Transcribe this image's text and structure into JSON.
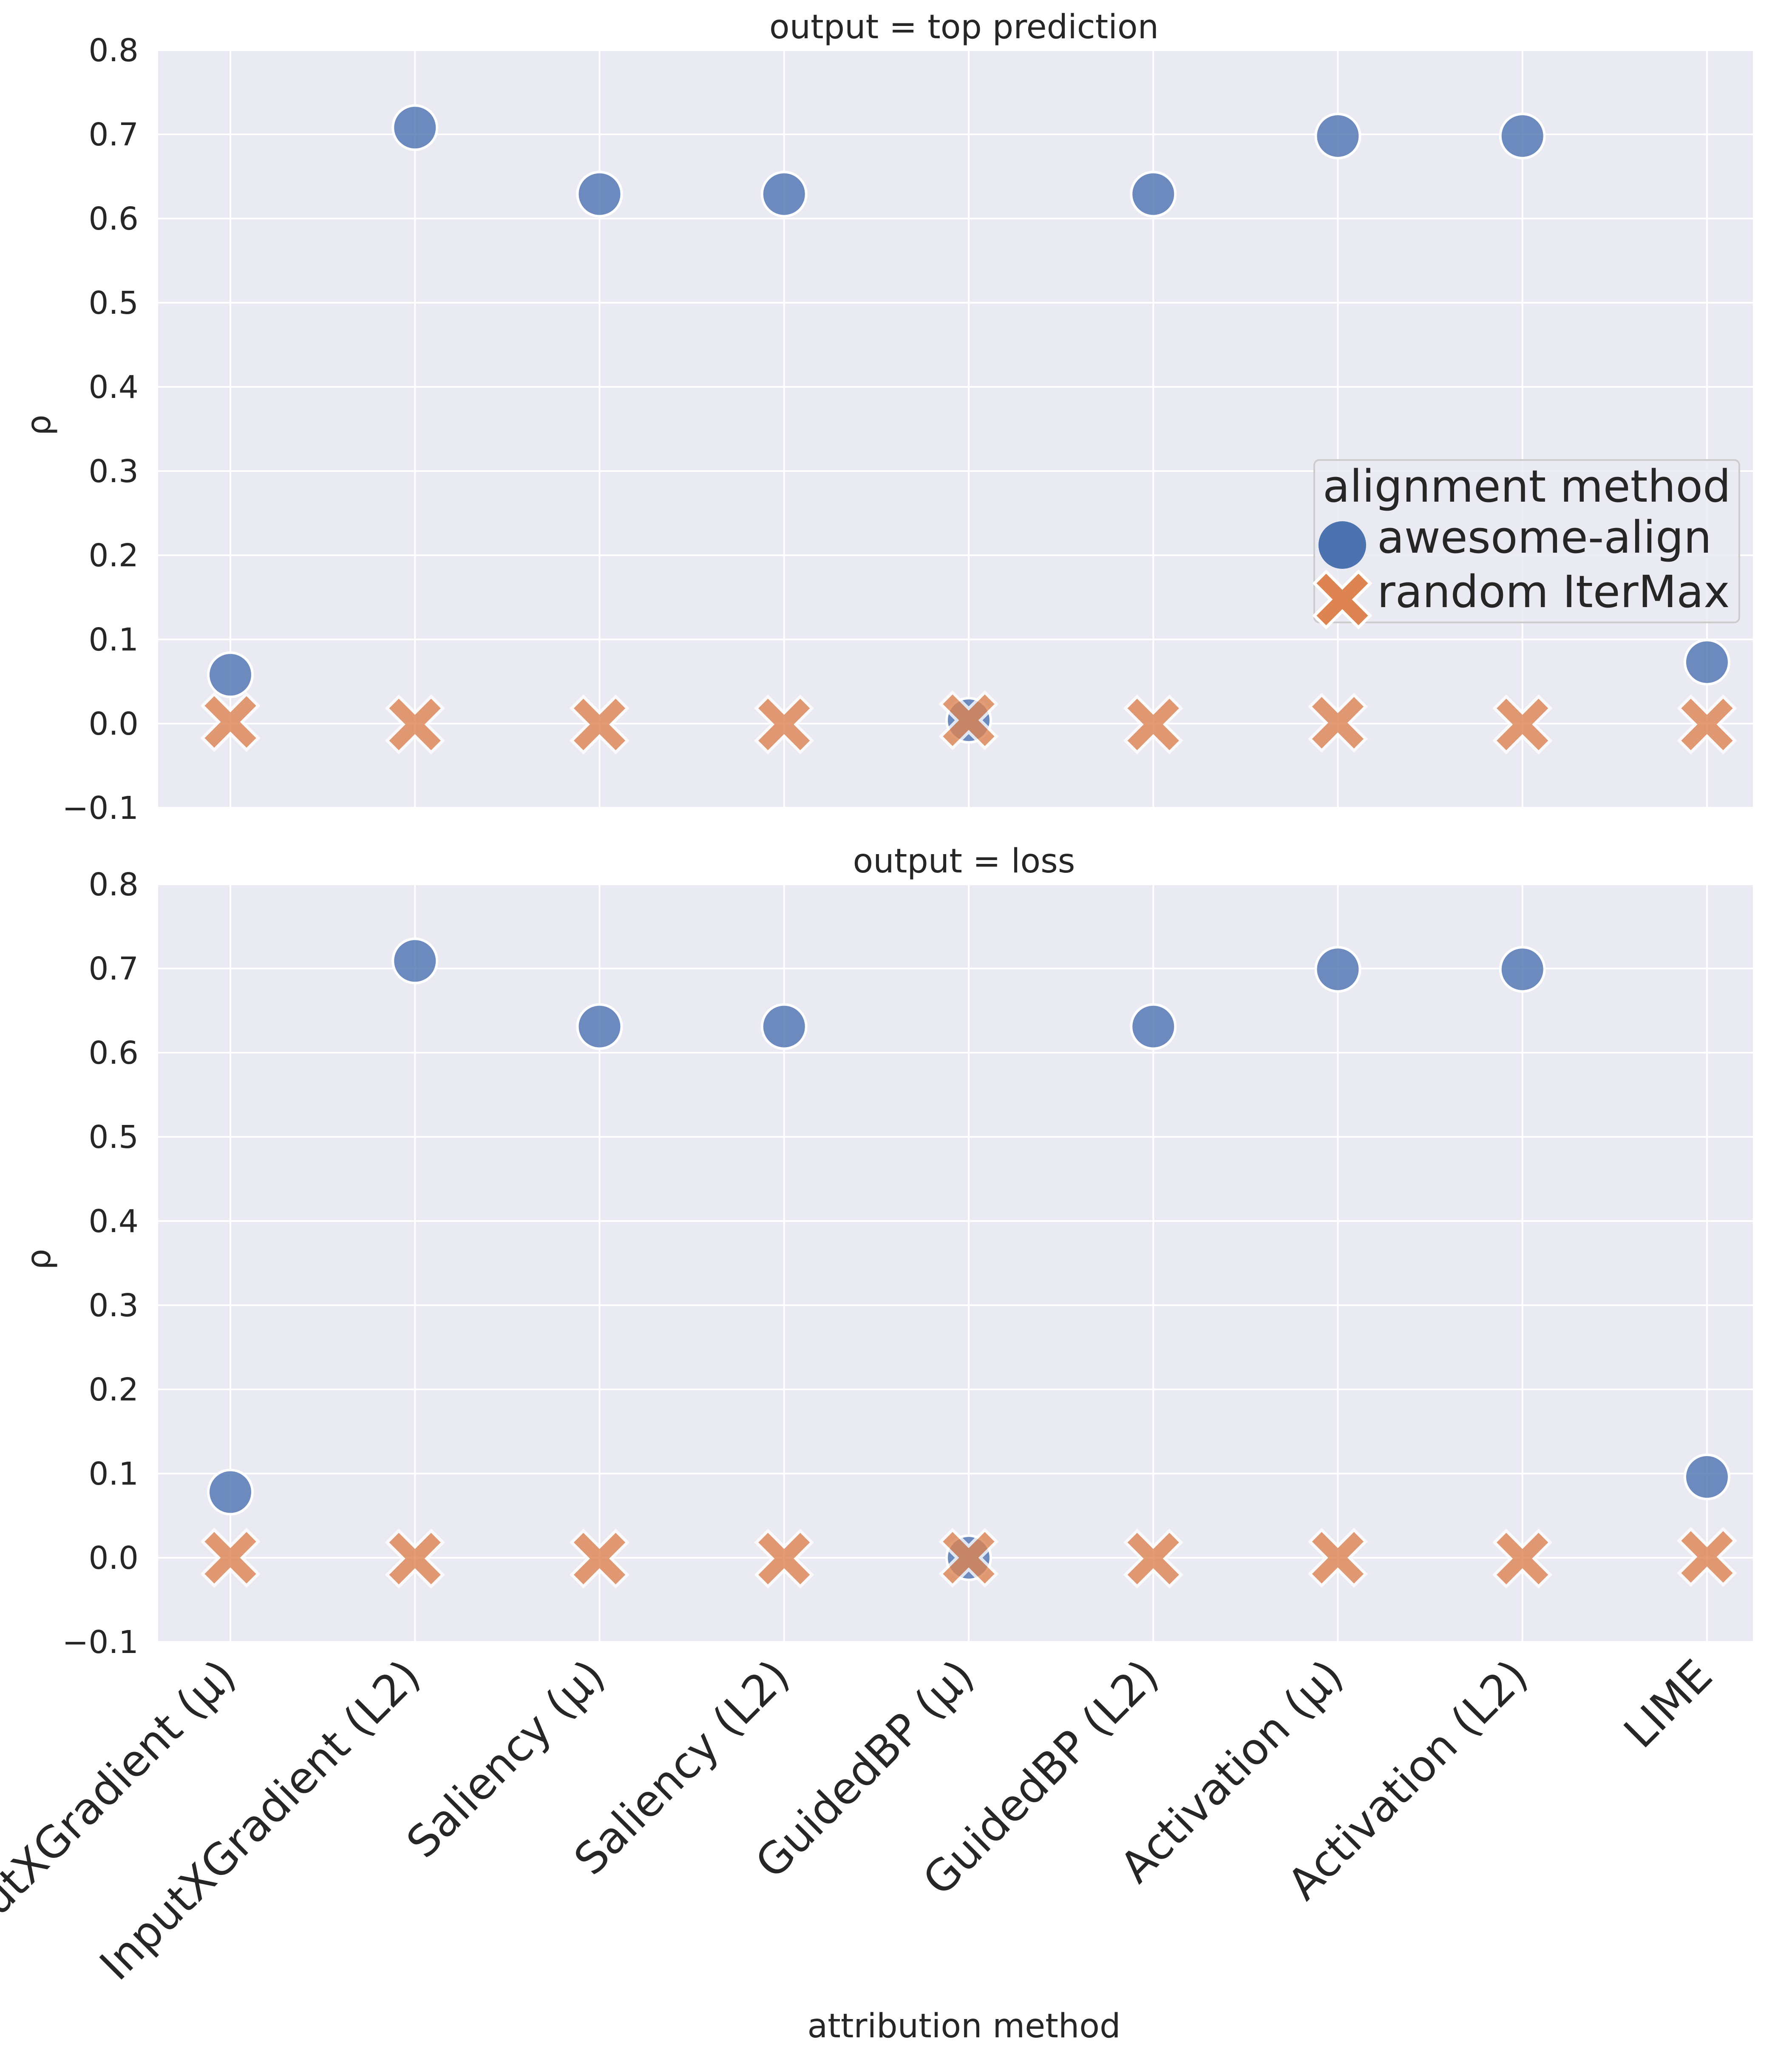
{
  "chart_data": {
    "type": "scatter",
    "xlabel": "attribution method",
    "ylabel": "ρ",
    "ylim": [
      -0.1,
      0.8
    ],
    "y_ticks": [
      -0.1,
      0.0,
      0.1,
      0.2,
      0.3,
      0.4,
      0.5,
      0.6,
      0.7,
      0.8
    ],
    "y_tick_labels": [
      "−0.1",
      "0.0",
      "0.1",
      "0.2",
      "0.3",
      "0.4",
      "0.5",
      "0.6",
      "0.7",
      "0.8"
    ],
    "categories": [
      "InputXGradient (μ)",
      "InputXGradient (L2)",
      "Saliency (μ)",
      "Saliency (L2)",
      "GuidedBP (μ)",
      "GuidedBP (L2)",
      "Activation (μ)",
      "Activation (L2)",
      "LIME"
    ],
    "grid": true,
    "legend": {
      "title": "alignment method",
      "placement": "right, upper panel"
    },
    "panels": [
      {
        "title": "output = top prediction",
        "series": [
          {
            "name": "awesome-align",
            "marker": "circle",
            "color": "#4c72b0",
            "values": [
              0.058,
              0.708,
              0.629,
              0.629,
              0.004,
              0.629,
              0.698,
              0.698,
              0.073
            ]
          },
          {
            "name": "random IterMax",
            "marker": "x",
            "color": "#dd8452",
            "values": [
              0.002,
              -0.001,
              -0.001,
              -0.001,
              0.004,
              -0.001,
              0.001,
              -0.001,
              -0.001
            ]
          }
        ]
      },
      {
        "title": "output = loss",
        "series": [
          {
            "name": "awesome-align",
            "marker": "circle",
            "color": "#4c72b0",
            "values": [
              0.078,
              0.709,
              0.631,
              0.631,
              0.0,
              0.631,
              0.699,
              0.699,
              0.096
            ]
          },
          {
            "name": "random IterMax",
            "marker": "x",
            "color": "#dd8452",
            "values": [
              0.0,
              -0.001,
              -0.001,
              -0.001,
              0.0,
              -0.001,
              0.0,
              -0.001,
              0.001
            ]
          }
        ]
      }
    ]
  }
}
